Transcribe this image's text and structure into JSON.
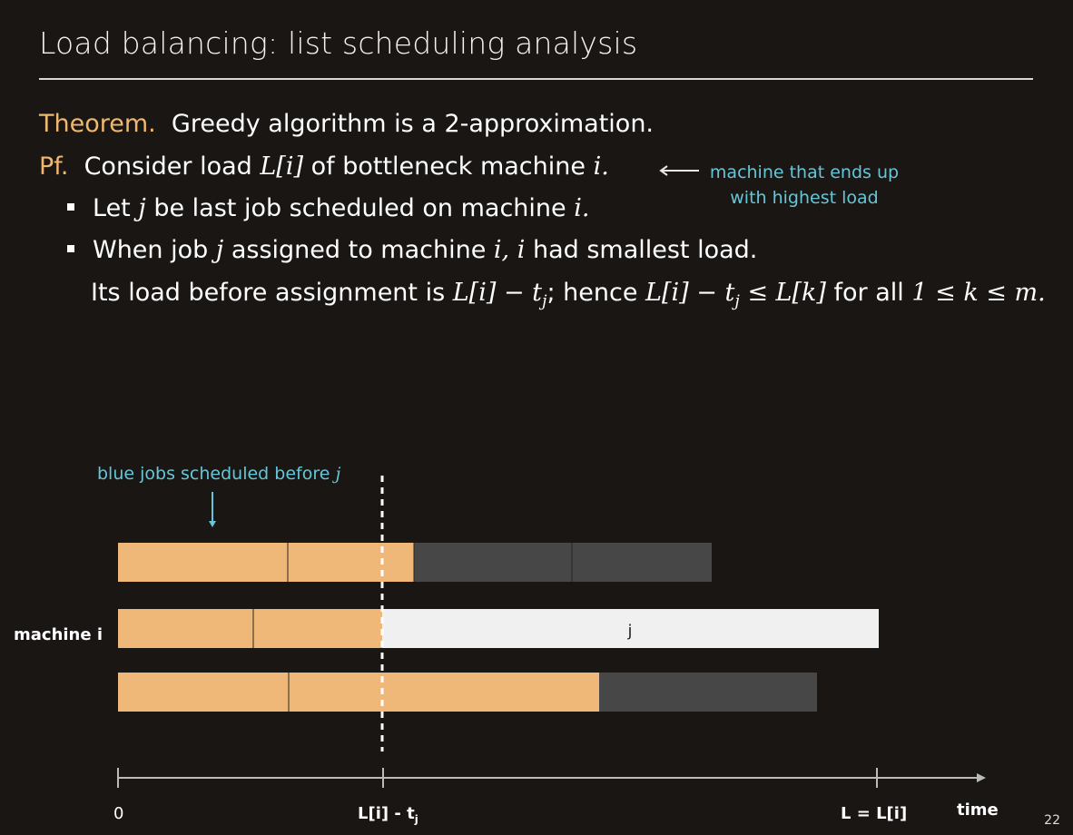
{
  "slide": {
    "title": "Load balancing:  list scheduling analysis",
    "page_number": "22"
  },
  "theorem": {
    "label": "Theorem.",
    "text": "Greedy algorithm is a 2-approximation."
  },
  "proof": {
    "label": "Pf.",
    "text_before": "Consider load",
    "load_symbol": "L[i]",
    "text_after": "of bottleneck machine",
    "machine_var": "i.",
    "note_line1": "machine that ends up",
    "note_line2": "with highest load"
  },
  "bullets": {
    "b1_a": "Let",
    "b1_var": "j",
    "b1_b": "be last job scheduled on machine",
    "b1_var2": "i.",
    "b2_a": "When job",
    "b2_var": "j",
    "b2_b": "assigned to machine",
    "b2_var2": "i, i",
    "b2_c": "had smallest load.",
    "b3_a": "Its load before assignment is",
    "b3_m1": "L[i] − t",
    "b3_sub1": "j",
    "b3_b": "; hence",
    "b3_m2": "L[i] − t",
    "b3_sub2": "j",
    "b3_m3": " ≤ L[k]",
    "b3_c": "for all",
    "b3_m4": "1 ≤ k ≤ m."
  },
  "diagram": {
    "annotation_text": "blue jobs scheduled before",
    "annotation_var": "j",
    "machine_label": "machine i",
    "job_label": "j",
    "axis_zero": "0",
    "axis_mid_main": "L[i] - t",
    "axis_mid_sub": "j",
    "axis_end": "L = L[i]",
    "axis_time": "time",
    "colors": {
      "orange": "#f0b878",
      "dark": "#474747",
      "light": "#f0f0f0",
      "cyan": "#65c6d8",
      "axis": "#bbbbbb"
    }
  }
}
